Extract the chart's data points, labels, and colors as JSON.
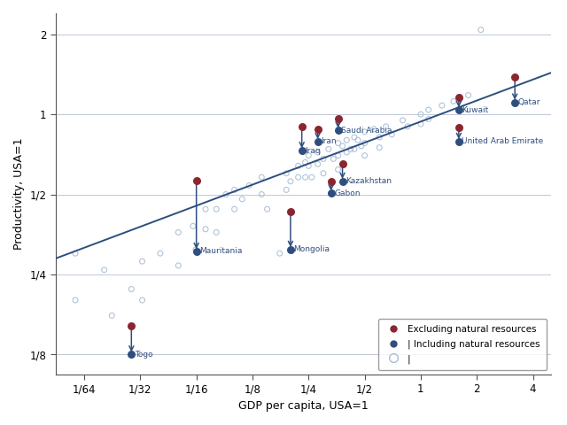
{
  "xlabel": "GDP per capita, USA=1",
  "ylabel": "Productivity, USA=1",
  "bg_color": "#ffffff",
  "scatter_color": "#a8bdd4",
  "line_color": "#2e4e7e",
  "dark_red": "#8b2530",
  "dark_blue": "#2e4e7e",
  "scatter_points": [
    [
      0.014,
      0.3
    ],
    [
      0.014,
      0.2
    ],
    [
      0.02,
      0.26
    ],
    [
      0.022,
      0.175
    ],
    [
      0.028,
      0.22
    ],
    [
      0.032,
      0.28
    ],
    [
      0.032,
      0.2
    ],
    [
      0.04,
      0.3
    ],
    [
      0.05,
      0.36
    ],
    [
      0.05,
      0.27
    ],
    [
      0.06,
      0.38
    ],
    [
      0.062,
      0.31
    ],
    [
      0.07,
      0.44
    ],
    [
      0.07,
      0.37
    ],
    [
      0.08,
      0.44
    ],
    [
      0.08,
      0.36
    ],
    [
      0.09,
      0.5
    ],
    [
      0.1,
      0.52
    ],
    [
      0.1,
      0.44
    ],
    [
      0.11,
      0.48
    ],
    [
      0.12,
      0.54
    ],
    [
      0.14,
      0.58
    ],
    [
      0.14,
      0.5
    ],
    [
      0.15,
      0.44
    ],
    [
      0.175,
      0.3
    ],
    [
      0.19,
      0.6
    ],
    [
      0.19,
      0.52
    ],
    [
      0.2,
      0.56
    ],
    [
      0.22,
      0.64
    ],
    [
      0.22,
      0.58
    ],
    [
      0.24,
      0.66
    ],
    [
      0.24,
      0.58
    ],
    [
      0.25,
      0.7
    ],
    [
      0.25,
      0.64
    ],
    [
      0.26,
      0.58
    ],
    [
      0.28,
      0.72
    ],
    [
      0.28,
      0.65
    ],
    [
      0.3,
      0.68
    ],
    [
      0.3,
      0.6
    ],
    [
      0.32,
      0.74
    ],
    [
      0.34,
      0.68
    ],
    [
      0.36,
      0.78
    ],
    [
      0.36,
      0.7
    ],
    [
      0.36,
      0.62
    ],
    [
      0.38,
      0.76
    ],
    [
      0.4,
      0.8
    ],
    [
      0.4,
      0.72
    ],
    [
      0.42,
      0.74
    ],
    [
      0.44,
      0.82
    ],
    [
      0.44,
      0.74
    ],
    [
      0.46,
      0.8
    ],
    [
      0.48,
      0.76
    ],
    [
      0.5,
      0.86
    ],
    [
      0.5,
      0.78
    ],
    [
      0.5,
      0.7
    ],
    [
      0.56,
      0.88
    ],
    [
      0.6,
      0.82
    ],
    [
      0.6,
      0.75
    ],
    [
      0.65,
      0.9
    ],
    [
      0.7,
      0.84
    ],
    [
      0.8,
      0.95
    ],
    [
      0.85,
      0.9
    ],
    [
      1.0,
      1.0
    ],
    [
      1.0,
      0.92
    ],
    [
      1.1,
      1.04
    ],
    [
      1.1,
      0.96
    ],
    [
      1.3,
      1.08
    ],
    [
      1.5,
      1.12
    ],
    [
      1.8,
      1.18
    ],
    [
      2.1,
      2.08
    ]
  ],
  "labeled_pairs": [
    {
      "name": "Togo",
      "gdp": 0.028,
      "excl": 0.16,
      "incl": 0.125,
      "label_side": "right"
    },
    {
      "name": "Mauritania",
      "gdp": 0.0625,
      "excl": 0.565,
      "incl": 0.305,
      "label_side": "right"
    },
    {
      "name": "Mongolia",
      "gdp": 0.2,
      "excl": 0.43,
      "incl": 0.31,
      "label_side": "right"
    },
    {
      "name": "Iraq",
      "gdp": 0.23,
      "excl": 0.9,
      "incl": 0.73,
      "label_side": "right"
    },
    {
      "name": "Iran",
      "gdp": 0.28,
      "excl": 0.88,
      "incl": 0.79,
      "label_side": "right"
    },
    {
      "name": "Saudi Arabia",
      "gdp": 0.36,
      "excl": 0.96,
      "incl": 0.87,
      "label_side": "right"
    },
    {
      "name": "Kazakhstan",
      "gdp": 0.38,
      "excl": 0.65,
      "incl": 0.56,
      "label_side": "right"
    },
    {
      "name": "Gabon",
      "gdp": 0.33,
      "excl": 0.56,
      "incl": 0.505,
      "label_side": "right"
    },
    {
      "name": "Kuwait",
      "gdp": 1.6,
      "excl": 1.16,
      "incl": 1.04,
      "label_side": "right"
    },
    {
      "name": "United Arab Emirate",
      "gdp": 1.6,
      "excl": 0.89,
      "incl": 0.79,
      "label_side": "right"
    },
    {
      "name": "Qatar",
      "gdp": 3.2,
      "excl": 1.38,
      "incl": 1.11,
      "label_side": "right"
    }
  ],
  "xticks": [
    0.015625,
    0.03125,
    0.0625,
    0.125,
    0.25,
    0.5,
    1.0,
    2.0,
    4.0
  ],
  "xtick_labels": [
    "1/64",
    "1/32",
    "1/16",
    "1/8",
    "1/4",
    "1/2",
    "1",
    "2",
    "4"
  ],
  "yticks": [
    0.125,
    0.25,
    0.5,
    1.0,
    2.0
  ],
  "ytick_labels": [
    "1/8",
    "1/4",
    "1/2",
    "1",
    "2"
  ],
  "xlim": [
    0.011,
    5.0
  ],
  "ylim": [
    0.105,
    2.4
  ],
  "reg_x1": 0.011,
  "reg_x2": 5.0,
  "reg_logy1": -1.8,
  "reg_logy2": 0.52
}
